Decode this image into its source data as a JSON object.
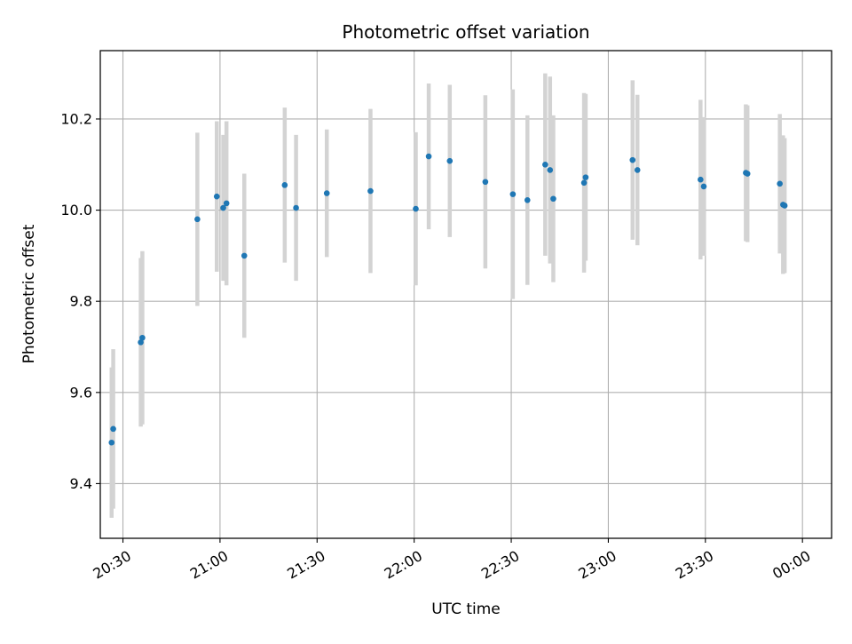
{
  "chart_data": {
    "type": "scatter",
    "title": "Photometric offset variation",
    "xlabel": "UTC time",
    "ylabel": "Photometric offset",
    "x_unit": "time (HH:MM, UTC)",
    "xlim": [
      "20:23",
      "00:09"
    ],
    "ylim": [
      9.28,
      10.35
    ],
    "x_ticks": [
      "20:30",
      "21:00",
      "21:30",
      "22:00",
      "22:30",
      "23:00",
      "23:30",
      "00:00"
    ],
    "y_ticks": [
      "9.4",
      "9.6",
      "9.8",
      "10.0",
      "10.2"
    ],
    "grid": true,
    "legend": "none",
    "point_color": "#1f77b4",
    "errorbar_color": "#d3d3d3",
    "points": [
      {
        "x": "20:26:30",
        "y": 9.49,
        "err": 0.165
      },
      {
        "x": "20:27:00",
        "y": 9.52,
        "err": 0.175
      },
      {
        "x": "20:35:30",
        "y": 9.71,
        "err": 0.185
      },
      {
        "x": "20:36:00",
        "y": 9.72,
        "err": 0.19
      },
      {
        "x": "20:53:00",
        "y": 9.98,
        "err": 0.19
      },
      {
        "x": "20:59:00",
        "y": 10.03,
        "err": 0.165
      },
      {
        "x": "21:01:00",
        "y": 10.005,
        "err": 0.16
      },
      {
        "x": "21:02:00",
        "y": 10.015,
        "err": 0.18
      },
      {
        "x": "21:07:30",
        "y": 9.9,
        "err": 0.18
      },
      {
        "x": "21:20:00",
        "y": 10.055,
        "err": 0.17
      },
      {
        "x": "21:23:30",
        "y": 10.005,
        "err": 0.16
      },
      {
        "x": "21:33:00",
        "y": 10.037,
        "err": 0.14
      },
      {
        "x": "21:46:30",
        "y": 10.042,
        "err": 0.18
      },
      {
        "x": "22:00:30",
        "y": 10.003,
        "err": 0.168
      },
      {
        "x": "22:04:30",
        "y": 10.118,
        "err": 0.16
      },
      {
        "x": "22:11:00",
        "y": 10.108,
        "err": 0.167
      },
      {
        "x": "22:22:00",
        "y": 10.062,
        "err": 0.19
      },
      {
        "x": "22:30:30",
        "y": 10.035,
        "err": 0.23
      },
      {
        "x": "22:35:00",
        "y": 10.022,
        "err": 0.186
      },
      {
        "x": "22:40:30",
        "y": 10.1,
        "err": 0.2
      },
      {
        "x": "22:42:00",
        "y": 10.088,
        "err": 0.205
      },
      {
        "x": "22:43:00",
        "y": 10.025,
        "err": 0.183
      },
      {
        "x": "22:52:30",
        "y": 10.06,
        "err": 0.197
      },
      {
        "x": "22:53:00",
        "y": 10.072,
        "err": 0.183
      },
      {
        "x": "23:07:30",
        "y": 10.11,
        "err": 0.175
      },
      {
        "x": "23:09:00",
        "y": 10.088,
        "err": 0.165
      },
      {
        "x": "23:28:30",
        "y": 10.067,
        "err": 0.175
      },
      {
        "x": "23:29:30",
        "y": 10.052,
        "err": 0.152
      },
      {
        "x": "23:42:30",
        "y": 10.082,
        "err": 0.15
      },
      {
        "x": "23:43:00",
        "y": 10.08,
        "err": 0.15
      },
      {
        "x": "23:53:00",
        "y": 10.058,
        "err": 0.153
      },
      {
        "x": "23:54:00",
        "y": 10.012,
        "err": 0.152
      },
      {
        "x": "23:54:30",
        "y": 10.01,
        "err": 0.148
      }
    ]
  }
}
